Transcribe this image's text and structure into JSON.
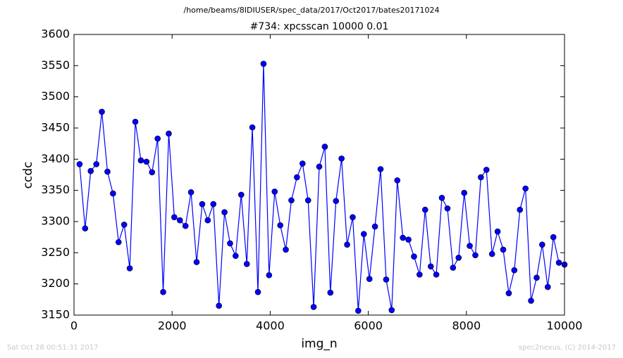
{
  "chart_data": {
    "type": "line",
    "suptitle": "/home/beams/8IDIUSER/spec_data/2017/Oct2017/bates20171024",
    "title": "#734: xpcsscan 10000 0.01",
    "x_label": "img_n",
    "y_label": "ccdc",
    "footer_left": "Sat Oct 28 00:51:31 2017",
    "footer_right": "spec2nexus, (C) 2014-2017",
    "x": [
      114,
      227,
      341,
      455,
      568,
      682,
      795,
      909,
      1023,
      1136,
      1250,
      1364,
      1477,
      1591,
      1705,
      1818,
      1932,
      2045,
      2159,
      2273,
      2386,
      2500,
      2614,
      2727,
      2841,
      2955,
      3068,
      3182,
      3295,
      3409,
      3523,
      3636,
      3750,
      3864,
      3977,
      4091,
      4205,
      4318,
      4432,
      4545,
      4659,
      4773,
      4886,
      5000,
      5114,
      5227,
      5341,
      5455,
      5568,
      5682,
      5795,
      5909,
      6023,
      6136,
      6250,
      6364,
      6477,
      6591,
      6705,
      6818,
      6932,
      7045,
      7159,
      7273,
      7386,
      7500,
      7614,
      7727,
      7841,
      7955,
      8068,
      8182,
      8295,
      8409,
      8523,
      8636,
      8750,
      8864,
      8977,
      9091,
      9205,
      9318,
      9432,
      9545,
      9659,
      9773,
      9886,
      10000
    ],
    "series": [
      {
        "name": "ccdc",
        "color": "#0000ff",
        "marker": true,
        "values": [
          3392,
          3289,
          3381,
          3392,
          3476,
          3380,
          3345,
          3267,
          3295,
          3225,
          3460,
          3398,
          3396,
          3379,
          3433,
          3187,
          3441,
          3307,
          3302,
          3293,
          3347,
          3235,
          3328,
          3302,
          3328,
          3165,
          3315,
          3265,
          3245,
          3343,
          3232,
          3451,
          3187,
          3553,
          3214,
          3348,
          3294,
          3255,
          3334,
          3371,
          3393,
          3334,
          3163,
          3388,
          3420,
          3186,
          3333,
          3401,
          3263,
          3307,
          3157,
          3280,
          3208,
          3292,
          3384,
          3207,
          3158,
          3366,
          3274,
          3271,
          3244,
          3215,
          3319,
          3228,
          3215,
          3338,
          3321,
          3226,
          3242,
          3346,
          3261,
          3246,
          3371,
          3383,
          3248,
          3284,
          3255,
          3185,
          3222,
          3319,
          3353,
          3173,
          3210,
          3263,
          3195,
          3275,
          3234,
          3231
        ]
      }
    ],
    "xlim": [
      0,
      10000
    ],
    "xticks": [
      0,
      2000,
      4000,
      6000,
      8000,
      10000
    ],
    "ylim": [
      3150,
      3600
    ],
    "yticks": [
      3150,
      3200,
      3250,
      3300,
      3350,
      3400,
      3450,
      3500,
      3550,
      3600
    ],
    "grid": false
  }
}
